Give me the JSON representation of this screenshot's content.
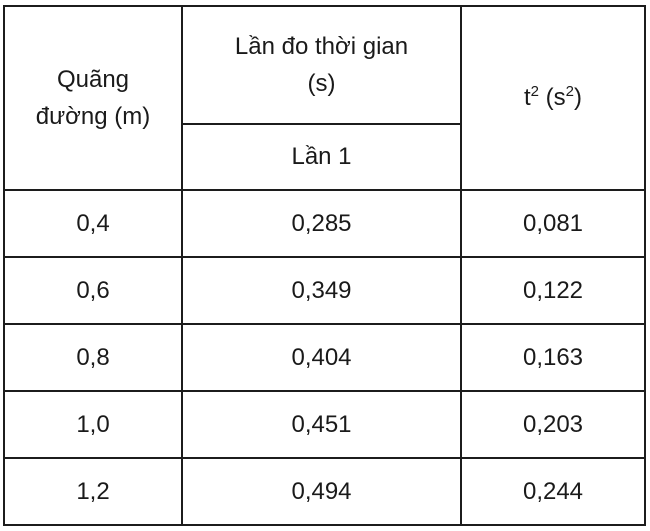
{
  "table": {
    "header": {
      "distance_line1": "Quãng",
      "distance_line2": "đường (m)",
      "time_line1": "Lần đo thời gian",
      "time_line2": "(s)",
      "trial_label": "Lần 1",
      "tsq": {
        "base": "t",
        "exp": "2",
        "unit_open": " (s",
        "unit_exp": "2",
        "unit_close": ")"
      }
    },
    "rows": [
      {
        "distance": "0,4",
        "time": "0,285",
        "tsq": "0,081"
      },
      {
        "distance": "0,6",
        "time": "0,349",
        "tsq": "0,122"
      },
      {
        "distance": "0,8",
        "time": "0,404",
        "tsq": "0,163"
      },
      {
        "distance": "1,0",
        "time": "0,451",
        "tsq": "0,203"
      },
      {
        "distance": "1,2",
        "time": "0,494",
        "tsq": "0,244"
      }
    ]
  }
}
